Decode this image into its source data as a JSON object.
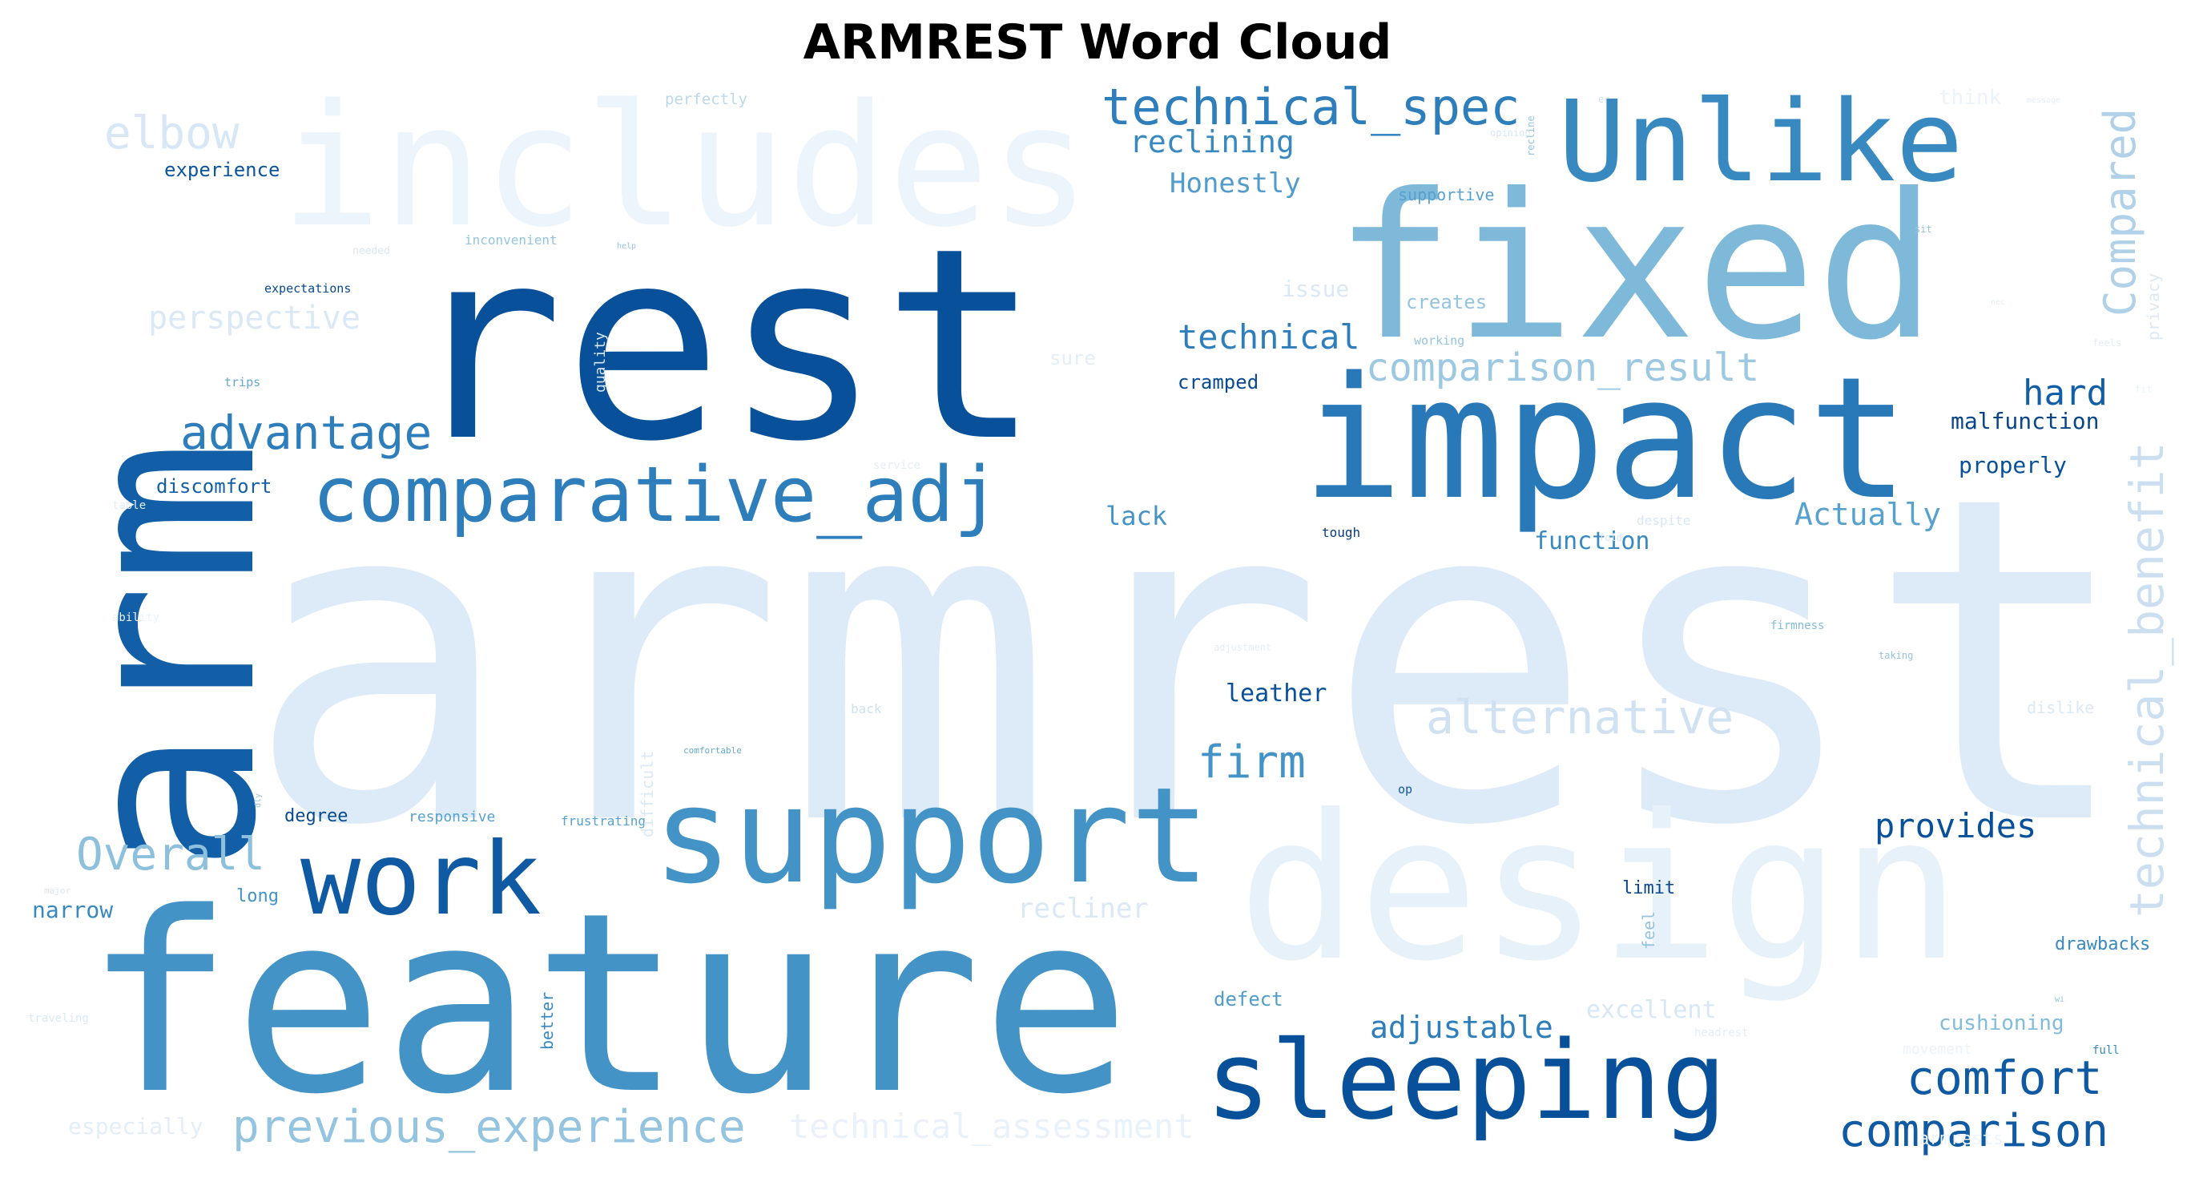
{
  "chart_data": {
    "type": "wordcloud",
    "title": "ARMREST Word Cloud",
    "colormap": "Blues",
    "background": "#ffffff",
    "words": [
      {
        "text": "armrest",
        "tone": 0.13
      },
      {
        "text": "arm",
        "tone": 0.82
      },
      {
        "text": "rest",
        "tone": 0.88
      },
      {
        "text": "feature",
        "tone": 0.62
      },
      {
        "text": "fixed",
        "tone": 0.45
      },
      {
        "text": "impact",
        "tone": 0.72
      },
      {
        "text": "design",
        "tone": 0.08
      },
      {
        "text": "includes",
        "tone": 0.05
      },
      {
        "text": "support",
        "tone": 0.62
      },
      {
        "text": "Unlike",
        "tone": 0.66
      },
      {
        "text": "sleeping",
        "tone": 0.88
      },
      {
        "text": "work",
        "tone": 0.84
      },
      {
        "text": "comparative_adj",
        "tone": 0.7
      },
      {
        "text": "technical_spec",
        "tone": 0.7
      },
      {
        "text": "previous_experience",
        "tone": 0.4
      },
      {
        "text": "technical_benefit",
        "tone": 0.22
      },
      {
        "text": "advantage",
        "tone": 0.7
      },
      {
        "text": "alternative",
        "tone": 0.2
      },
      {
        "text": "Overall",
        "tone": 0.42
      },
      {
        "text": "comparison",
        "tone": 0.84
      },
      {
        "text": "comfort",
        "tone": 0.84
      },
      {
        "text": "Compared",
        "tone": 0.32
      },
      {
        "text": "firm",
        "tone": 0.62
      },
      {
        "text": "elbow",
        "tone": 0.16
      },
      {
        "text": "comparison_result",
        "tone": 0.38
      },
      {
        "text": "provides",
        "tone": 0.88
      },
      {
        "text": "technical_assessment",
        "tone": 0.07
      },
      {
        "text": "perspective",
        "tone": 0.14
      },
      {
        "text": "technical",
        "tone": 0.7
      },
      {
        "text": "reclining",
        "tone": 0.66
      },
      {
        "text": "hard",
        "tone": 0.82
      },
      {
        "text": "Actually",
        "tone": 0.56
      },
      {
        "text": "Honestly",
        "tone": 0.58
      },
      {
        "text": "adjustable",
        "tone": 0.7
      },
      {
        "text": "recliner",
        "tone": 0.14
      },
      {
        "text": "excellent",
        "tone": 0.16
      },
      {
        "text": "lack",
        "tone": 0.62
      },
      {
        "text": "function",
        "tone": 0.66
      },
      {
        "text": "leather",
        "tone": 0.88
      },
      {
        "text": "malfunction",
        "tone": 0.92
      },
      {
        "text": "properly",
        "tone": 0.88
      },
      {
        "text": "cushioning",
        "tone": 0.44
      },
      {
        "text": "narrow",
        "tone": 0.66
      },
      {
        "text": "experience",
        "tone": 0.86
      },
      {
        "text": "issue",
        "tone": 0.14
      },
      {
        "text": "creates",
        "tone": 0.4
      },
      {
        "text": "cramped",
        "tone": 0.9
      },
      {
        "text": "discomfort",
        "tone": 0.82
      },
      {
        "text": "defect",
        "tone": 0.58
      },
      {
        "text": "long",
        "tone": 0.62
      },
      {
        "text": "degree",
        "tone": 0.9
      },
      {
        "text": "limit",
        "tone": 0.92
      },
      {
        "text": "drawbacks",
        "tone": 0.66
      },
      {
        "text": "especially",
        "tone": 0.1
      },
      {
        "text": "sure",
        "tone": 0.1
      },
      {
        "text": "think",
        "tone": 0.06
      },
      {
        "text": "perfectly",
        "tone": 0.28
      },
      {
        "text": "supportive",
        "tone": 0.56
      },
      {
        "text": "privacy",
        "tone": 0.14
      },
      {
        "text": "responsive",
        "tone": 0.56
      },
      {
        "text": "frustrating",
        "tone": 0.56
      },
      {
        "text": "dislike",
        "tone": 0.14
      },
      {
        "text": "difficult",
        "tone": 0.14
      },
      {
        "text": "better",
        "tone": 0.66
      },
      {
        "text": "feel",
        "tone": 0.4
      },
      {
        "text": "tough",
        "tone": 0.95
      },
      {
        "text": "expectations",
        "tone": 0.9
      },
      {
        "text": "inconvenient",
        "tone": 0.4
      },
      {
        "text": "trips",
        "tone": 0.52
      },
      {
        "text": "quality",
        "tone": 0.16
      },
      {
        "text": "needed",
        "tone": 0.16
      },
      {
        "text": "working",
        "tone": 0.4
      },
      {
        "text": "despite",
        "tone": 0.16
      },
      {
        "text": "firmness",
        "tone": 0.44
      },
      {
        "text": "back",
        "tone": 0.2
      },
      {
        "text": "comfortable",
        "tone": 0.52
      },
      {
        "text": "op",
        "tone": 0.84
      },
      {
        "text": "headrest",
        "tone": 0.1
      },
      {
        "text": "movement",
        "tone": 0.06
      },
      {
        "text": "full",
        "tone": 0.66
      },
      {
        "text": "traveling",
        "tone": 0.14
      },
      {
        "text": "table",
        "tone": 0.1
      },
      {
        "text": "service",
        "tone": 0.1
      },
      {
        "text": "taking",
        "tone": 0.4
      },
      {
        "text": "sit",
        "tone": 0.4
      },
      {
        "text": "recline",
        "tone": 0.4
      },
      {
        "text": "opinion",
        "tone": 0.16
      },
      {
        "text": "adjustment",
        "tone": 0.1
      },
      {
        "text": "major",
        "tone": 0.16
      },
      {
        "text": "message",
        "tone": 0.1
      },
      {
        "text": "fold",
        "tone": 0.16
      },
      {
        "text": "help",
        "tone": 0.4
      },
      {
        "text": "feels",
        "tone": 0.1
      },
      {
        "text": "ability",
        "tone": 0.06
      },
      {
        "text": "fit",
        "tone": 0.06
      },
      {
        "text": "dly",
        "tone": 0.4
      },
      {
        "text": "armrests",
        "tone": 0.05
      },
      {
        "text": "nec",
        "tone": 0.1
      },
      {
        "text": "wi",
        "tone": 0.4
      },
      {
        "text": "er",
        "tone": 0.2
      }
    ]
  }
}
